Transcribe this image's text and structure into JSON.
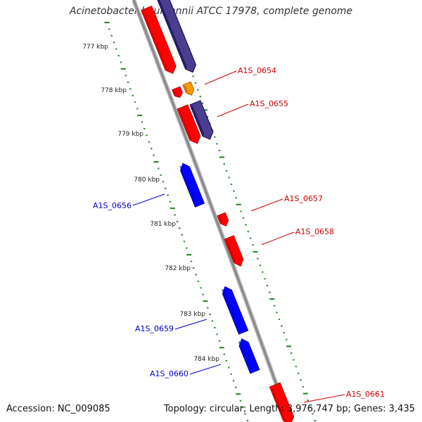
{
  "title": "Acinetobacter baumannii ATCC 17978, complete genome",
  "accession": "Accession: NC_009085",
  "topology": "Topology: circular; Length: 3,976,747 bp; Genes: 3,435",
  "colors": {
    "backbone": "#8a8a8a",
    "cds_forward": "#ff0000",
    "cds_reverse": "#0000ff",
    "cds_other": "#4b3d8f",
    "orf": "#ff9900",
    "ticks": "#2e8b2e",
    "label_forward": "#cc0000",
    "label_reverse": "#0000cc"
  },
  "scale_labels": [
    "777 kbp",
    "778 kbp",
    "779 kbp",
    "780 kbp",
    "781 kbp",
    "782 kbp",
    "783 kbp",
    "784 kbp"
  ],
  "gene_labels_forward": [
    "A1S_0654",
    "A1S_0655",
    "A1S_0657",
    "A1S_0658",
    "A1S_0661"
  ],
  "gene_labels_reverse": [
    "A1S_0656",
    "A1S_0659",
    "A1S_0660"
  ]
}
